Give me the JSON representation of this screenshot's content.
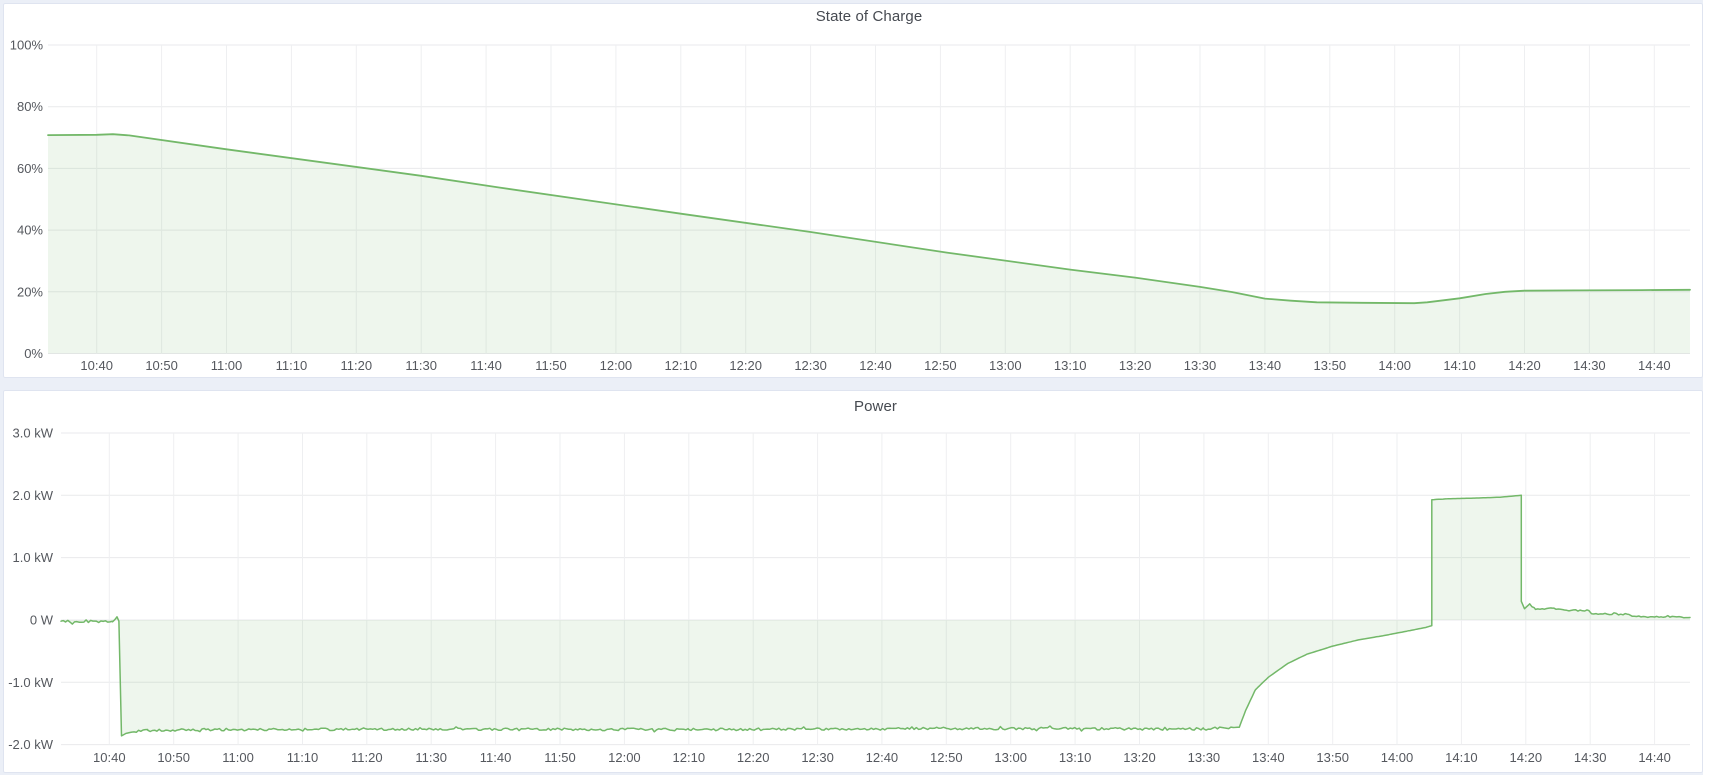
{
  "page": {
    "background": "#ebeff7",
    "panel_background": "#ffffff",
    "panel_border": "#dfe4f0",
    "accent_green": "#73b869"
  },
  "chart_data": [
    {
      "type": "area",
      "title": "State of Charge",
      "unit": "%",
      "legend": false,
      "grid": true,
      "ylim": [
        0,
        100
      ],
      "x_start_min": 632.5,
      "x_end_min": 885.5,
      "x_ticks": [
        {
          "min": 640,
          "label": "10:40"
        },
        {
          "min": 650,
          "label": "10:50"
        },
        {
          "min": 660,
          "label": "11:00"
        },
        {
          "min": 670,
          "label": "11:10"
        },
        {
          "min": 680,
          "label": "11:20"
        },
        {
          "min": 690,
          "label": "11:30"
        },
        {
          "min": 700,
          "label": "11:40"
        },
        {
          "min": 710,
          "label": "11:50"
        },
        {
          "min": 720,
          "label": "12:00"
        },
        {
          "min": 730,
          "label": "12:10"
        },
        {
          "min": 740,
          "label": "12:20"
        },
        {
          "min": 750,
          "label": "12:30"
        },
        {
          "min": 760,
          "label": "12:40"
        },
        {
          "min": 770,
          "label": "12:50"
        },
        {
          "min": 780,
          "label": "13:00"
        },
        {
          "min": 790,
          "label": "13:10"
        },
        {
          "min": 800,
          "label": "13:20"
        },
        {
          "min": 810,
          "label": "13:30"
        },
        {
          "min": 820,
          "label": "13:40"
        },
        {
          "min": 830,
          "label": "13:50"
        },
        {
          "min": 840,
          "label": "14:00"
        },
        {
          "min": 850,
          "label": "14:10"
        },
        {
          "min": 860,
          "label": "14:20"
        },
        {
          "min": 870,
          "label": "14:30"
        },
        {
          "min": 880,
          "label": "14:40"
        }
      ],
      "y_ticks": [
        {
          "value": 100,
          "label": "100%"
        },
        {
          "value": 80,
          "label": "80%"
        },
        {
          "value": 60,
          "label": "60%"
        },
        {
          "value": 40,
          "label": "40%"
        },
        {
          "value": 20,
          "label": "20%"
        },
        {
          "value": 0,
          "label": "0%"
        }
      ],
      "series": [
        {
          "name": "State of Charge",
          "color": "#73b869",
          "fill_opacity": 0.12,
          "points": [
            [
              632.5,
              70.8
            ],
            [
              640,
              70.9
            ],
            [
              642.5,
              71.1
            ],
            [
              645,
              70.7
            ],
            [
              660,
              66.2
            ],
            [
              690,
              57.6
            ],
            [
              702,
              53.8
            ],
            [
              730,
              45.3
            ],
            [
              750,
              39.4
            ],
            [
              771,
              32.7
            ],
            [
              790,
              27.2
            ],
            [
              800,
              24.6
            ],
            [
              810,
              21.6
            ],
            [
              815,
              19.9
            ],
            [
              820,
              17.8
            ],
            [
              824,
              17.1
            ],
            [
              828,
              16.6
            ],
            [
              835,
              16.45
            ],
            [
              843,
              16.3
            ],
            [
              845,
              16.6
            ],
            [
              850,
              17.9
            ],
            [
              854,
              19.3
            ],
            [
              857,
              20.0
            ],
            [
              860,
              20.35
            ],
            [
              868,
              20.45
            ],
            [
              878,
              20.55
            ],
            [
              885.5,
              20.65
            ]
          ]
        }
      ]
    },
    {
      "type": "area",
      "title": "Power",
      "unit": "kW",
      "legend": false,
      "grid": true,
      "ylim": [
        -2.03,
        3.13
      ],
      "baseline": 0,
      "x_start_min": 632.5,
      "x_end_min": 885.5,
      "x_ticks": [
        {
          "min": 640,
          "label": "10:40"
        },
        {
          "min": 650,
          "label": "10:50"
        },
        {
          "min": 660,
          "label": "11:00"
        },
        {
          "min": 670,
          "label": "11:10"
        },
        {
          "min": 680,
          "label": "11:20"
        },
        {
          "min": 690,
          "label": "11:30"
        },
        {
          "min": 700,
          "label": "11:40"
        },
        {
          "min": 710,
          "label": "11:50"
        },
        {
          "min": 720,
          "label": "12:00"
        },
        {
          "min": 730,
          "label": "12:10"
        },
        {
          "min": 740,
          "label": "12:20"
        },
        {
          "min": 750,
          "label": "12:30"
        },
        {
          "min": 760,
          "label": "12:40"
        },
        {
          "min": 770,
          "label": "12:50"
        },
        {
          "min": 780,
          "label": "13:00"
        },
        {
          "min": 790,
          "label": "13:10"
        },
        {
          "min": 800,
          "label": "13:20"
        },
        {
          "min": 810,
          "label": "13:30"
        },
        {
          "min": 820,
          "label": "13:40"
        },
        {
          "min": 830,
          "label": "13:50"
        },
        {
          "min": 840,
          "label": "14:00"
        },
        {
          "min": 850,
          "label": "14:10"
        },
        {
          "min": 860,
          "label": "14:20"
        },
        {
          "min": 870,
          "label": "14:30"
        },
        {
          "min": 880,
          "label": "14:40"
        }
      ],
      "y_ticks": [
        {
          "value": 3,
          "label": "3.0 kW"
        },
        {
          "value": 2,
          "label": "2.0 kW"
        },
        {
          "value": 1,
          "label": "1.0 kW"
        },
        {
          "value": 0,
          "label": "0 W"
        },
        {
          "value": -1,
          "label": "-1.0 kW"
        },
        {
          "value": -2,
          "label": "-2.0 kW"
        }
      ],
      "noise_segments": [
        {
          "from": 632.5,
          "to": 641.0,
          "amp": 0.02
        },
        {
          "from": 644.0,
          "to": 814.5,
          "amp": 0.02
        },
        {
          "from": 860.5,
          "to": 885.5,
          "amp": 0.012
        }
      ],
      "series": [
        {
          "name": "Power",
          "color": "#73b869",
          "fill_opacity": 0.12,
          "points": [
            [
              632.5,
              -0.02
            ],
            [
              635,
              -0.03
            ],
            [
              638,
              -0.02
            ],
            [
              640.5,
              -0.03
            ],
            [
              641.2,
              0.05
            ],
            [
              641.5,
              -0.02
            ],
            [
              641.9,
              -1.86
            ],
            [
              642.6,
              -1.82
            ],
            [
              643.5,
              -1.8
            ],
            [
              646,
              -1.77
            ],
            [
              655,
              -1.76
            ],
            [
              690,
              -1.75
            ],
            [
              730,
              -1.76
            ],
            [
              770,
              -1.74
            ],
            [
              810,
              -1.75
            ],
            [
              815.5,
              -1.72
            ],
            [
              816.5,
              -1.45
            ],
            [
              818,
              -1.12
            ],
            [
              820,
              -0.92
            ],
            [
              823,
              -0.7
            ],
            [
              826,
              -0.55
            ],
            [
              830,
              -0.42
            ],
            [
              834,
              -0.32
            ],
            [
              838,
              -0.25
            ],
            [
              842,
              -0.17
            ],
            [
              844.5,
              -0.12
            ],
            [
              845.4,
              -0.09
            ],
            [
              845.4,
              1.93
            ],
            [
              848,
              1.945
            ],
            [
              852,
              1.955
            ],
            [
              856,
              1.97
            ],
            [
              859.3,
              2.0
            ],
            [
              859.3,
              0.3
            ],
            [
              859.8,
              0.18
            ],
            [
              860.6,
              0.26
            ],
            [
              861.5,
              0.17
            ],
            [
              864,
              0.19
            ],
            [
              866,
              0.16
            ],
            [
              869.8,
              0.15
            ],
            [
              870.2,
              0.1
            ],
            [
              876,
              0.09
            ],
            [
              876.5,
              0.06
            ],
            [
              881,
              0.05
            ],
            [
              885.5,
              0.04
            ]
          ]
        }
      ]
    }
  ]
}
